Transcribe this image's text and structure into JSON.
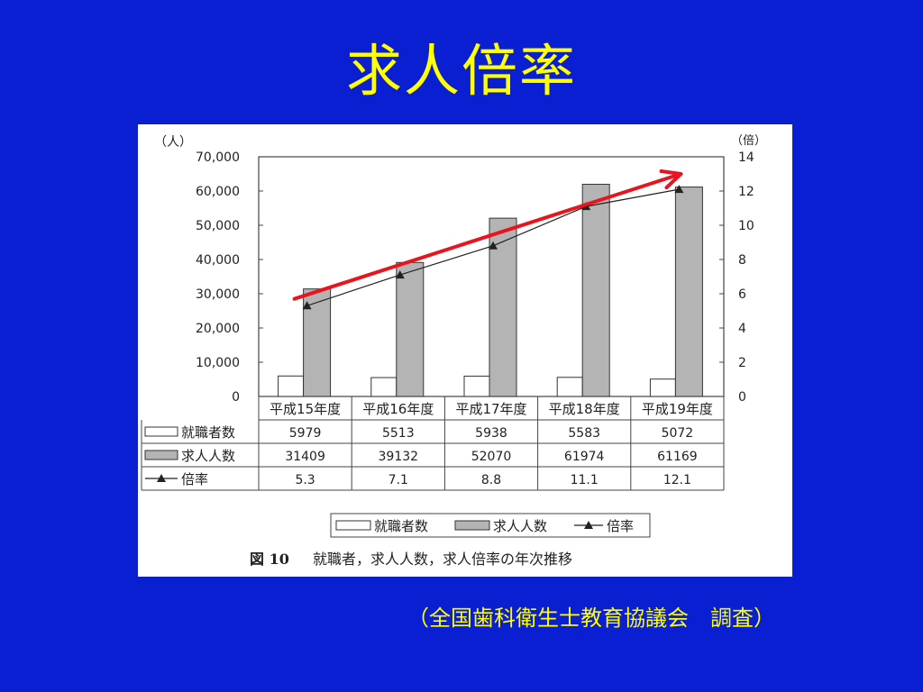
{
  "slide": {
    "title": "求人倍率",
    "source": "（全国歯科衛生士教育協議会　調査）"
  },
  "colors": {
    "background": "#0a1fd2",
    "title": "#ffff00",
    "bar_employed": "#ffffff",
    "bar_openings": "#b4b4b4",
    "line": "#222222",
    "trend_arrow": "#e8141e"
  },
  "chart_data": {
    "type": "bar",
    "title": "",
    "caption_number": "図 10",
    "caption_text": "就職者，求人人数，求人倍率の年次推移",
    "left_unit": "（人）",
    "right_unit": "（倍）",
    "categories": [
      "平成15年度",
      "平成16年度",
      "平成17年度",
      "平成18年度",
      "平成19年度"
    ],
    "ylim": [
      0,
      70000
    ],
    "y_ticks": [
      "70,000",
      "60,000",
      "50,000",
      "40,000",
      "30,000",
      "20,000",
      "10,000",
      "0"
    ],
    "y2lim": [
      0,
      14
    ],
    "y2_ticks": [
      "14",
      "12",
      "10",
      "8",
      "6",
      "4",
      "2",
      "0"
    ],
    "series": [
      {
        "name": "就職者数",
        "kind": "bar",
        "values": [
          5979,
          5513,
          5938,
          5583,
          5072
        ],
        "labels": [
          "5979",
          "5513",
          "5938",
          "5583",
          "5072"
        ]
      },
      {
        "name": "求人人数",
        "kind": "bar",
        "values": [
          31409,
          39132,
          52070,
          61974,
          61169
        ],
        "labels": [
          "31409",
          "39132",
          "52070",
          "61974",
          "61169"
        ]
      },
      {
        "name": "倍率",
        "kind": "line",
        "axis": "right",
        "values": [
          5.3,
          7.1,
          8.8,
          11.1,
          12.1
        ],
        "labels": [
          "5.3",
          "7.1",
          "8.8",
          "11.1",
          "12.1"
        ]
      }
    ],
    "legend": [
      "就職者数",
      "求人人数",
      "倍率"
    ],
    "legend_position": "bottom",
    "grid": false,
    "annotation": "red upward trend arrow"
  }
}
